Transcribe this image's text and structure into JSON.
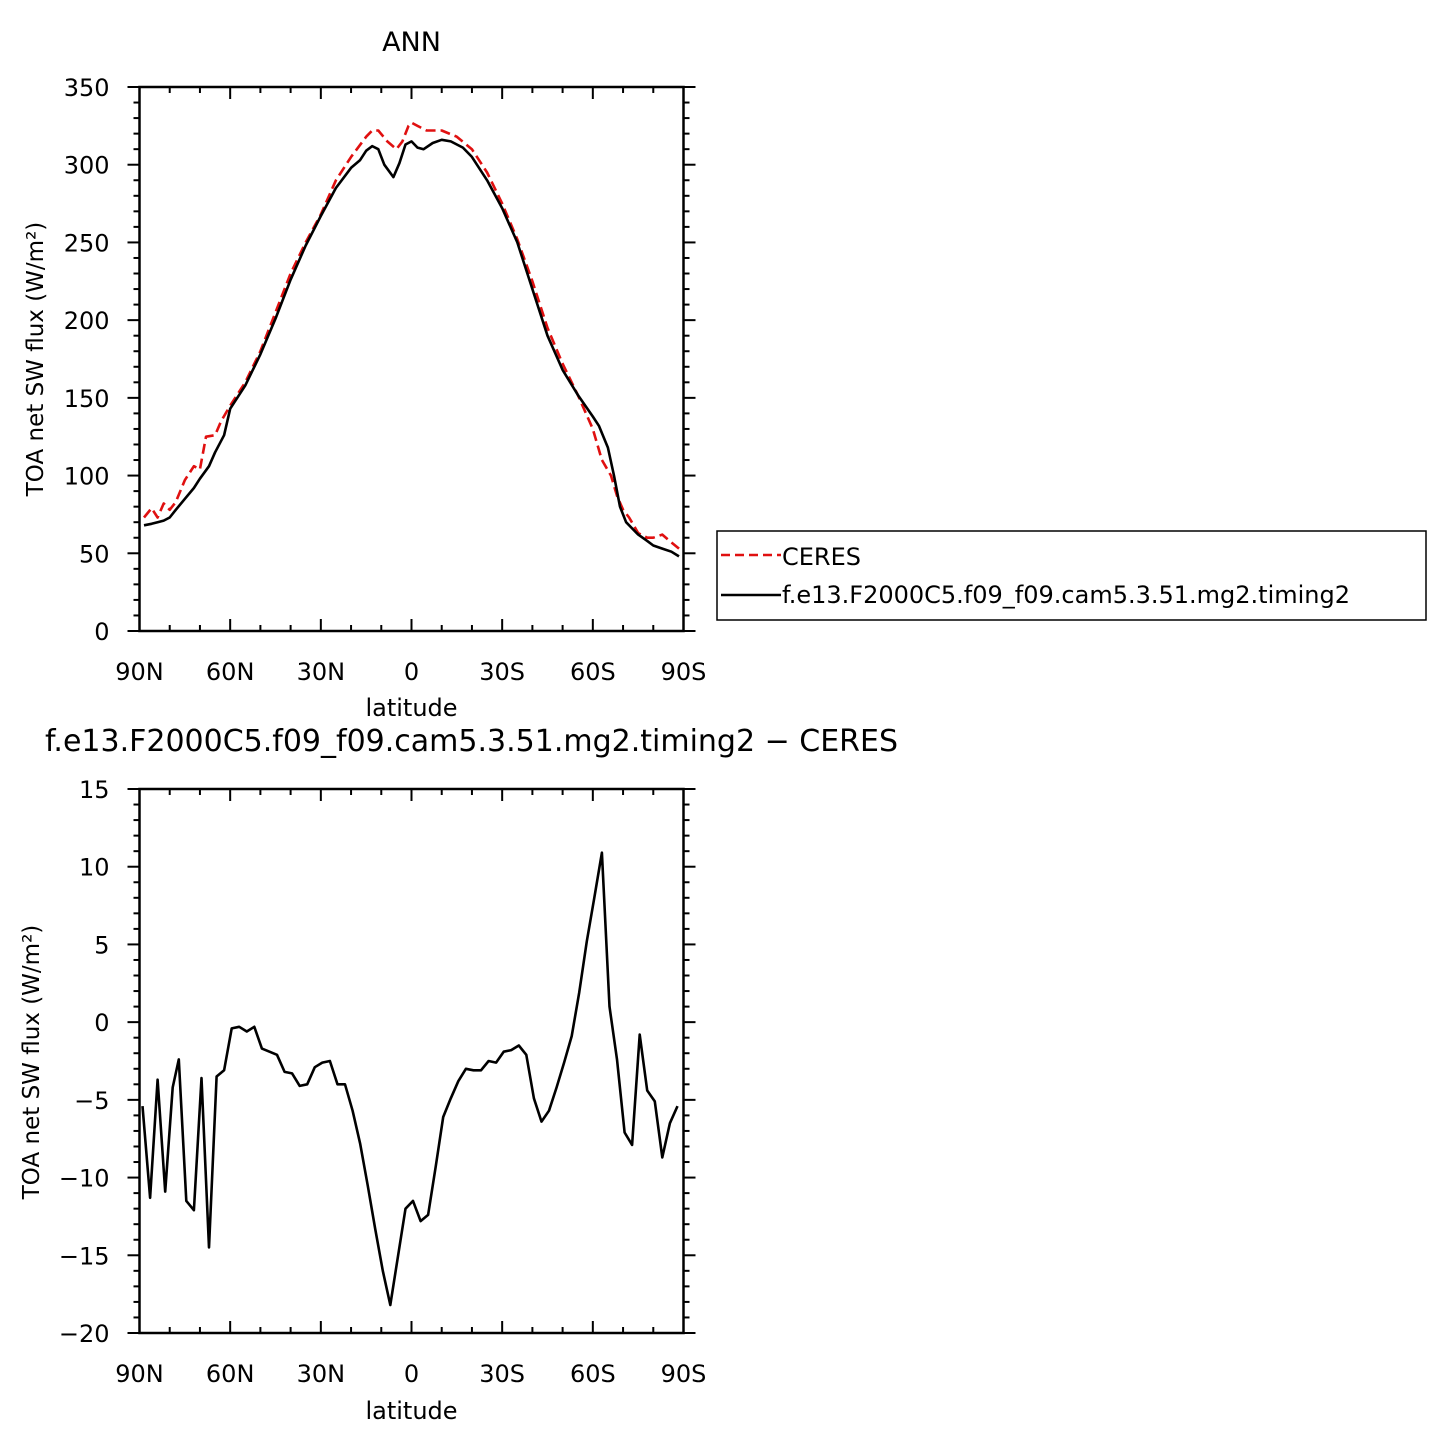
{
  "chart_data": [
    {
      "type": "line",
      "title": "ANN",
      "xlabel": "latitude",
      "ylabel": "TOA net SW flux (W/m²)",
      "xlim": [
        90,
        -90
      ],
      "ylim": [
        0,
        350
      ],
      "x_ticks": [
        {
          "value": 90,
          "label": "90N"
        },
        {
          "value": 60,
          "label": "60N"
        },
        {
          "value": 30,
          "label": "30N"
        },
        {
          "value": 0,
          "label": "0"
        },
        {
          "value": -30,
          "label": "30S"
        },
        {
          "value": -60,
          "label": "60S"
        },
        {
          "value": -90,
          "label": "90S"
        }
      ],
      "y_ticks": [
        {
          "value": 0,
          "label": "0"
        },
        {
          "value": 50,
          "label": "50"
        },
        {
          "value": 100,
          "label": "100"
        },
        {
          "value": 150,
          "label": "150"
        },
        {
          "value": 200,
          "label": "200"
        },
        {
          "value": 250,
          "label": "250"
        },
        {
          "value": 300,
          "label": "300"
        },
        {
          "value": 350,
          "label": "350"
        }
      ],
      "legend": "right",
      "series": [
        {
          "name": "CERES",
          "color": "#e01010",
          "dash": "dashed",
          "points": [
            [
              88.5,
              73
            ],
            [
              86,
              79
            ],
            [
              84,
              73
            ],
            [
              82,
              82
            ],
            [
              80,
              78
            ],
            [
              78,
              83
            ],
            [
              75,
              97
            ],
            [
              72,
              106
            ],
            [
              70,
              104
            ],
            [
              68,
              125
            ],
            [
              65,
              126
            ],
            [
              63,
              135
            ],
            [
              60,
              145
            ],
            [
              55,
              160
            ],
            [
              50,
              180
            ],
            [
              45,
              205
            ],
            [
              40,
              230
            ],
            [
              35,
              250
            ],
            [
              30,
              268
            ],
            [
              25,
              290
            ],
            [
              20,
              305
            ],
            [
              15,
              318
            ],
            [
              13,
              322
            ],
            [
              11,
              322
            ],
            [
              8,
              315
            ],
            [
              5,
              310
            ],
            [
              3,
              315
            ],
            [
              1,
              325
            ],
            [
              0,
              327
            ],
            [
              -2,
              325
            ],
            [
              -5,
              322
            ],
            [
              -10,
              322
            ],
            [
              -15,
              318
            ],
            [
              -20,
              310
            ],
            [
              -25,
              295
            ],
            [
              -30,
              275
            ],
            [
              -35,
              252
            ],
            [
              -40,
              225
            ],
            [
              -45,
              195
            ],
            [
              -50,
              172
            ],
            [
              -55,
              152
            ],
            [
              -60,
              130
            ],
            [
              -63,
              110
            ],
            [
              -66,
              100
            ],
            [
              -68,
              87
            ],
            [
              -70,
              78
            ],
            [
              -72,
              73
            ],
            [
              -75,
              63
            ],
            [
              -78,
              60
            ],
            [
              -80,
              60
            ],
            [
              -83,
              62
            ],
            [
              -86,
              57
            ],
            [
              -88.5,
              53
            ]
          ]
        },
        {
          "name": "f.e13.F2000C5.f09_f09.cam5.3.51.mg2.timing2",
          "color": "#000000",
          "dash": "solid",
          "points": [
            [
              88.5,
              68
            ],
            [
              86,
              69
            ],
            [
              84,
              70
            ],
            [
              82,
              71
            ],
            [
              80,
              73
            ],
            [
              78,
              78
            ],
            [
              75,
              85
            ],
            [
              72,
              92
            ],
            [
              70,
              98
            ],
            [
              67,
              106
            ],
            [
              65,
              115
            ],
            [
              62,
              126
            ],
            [
              60,
              143
            ],
            [
              55,
              158
            ],
            [
              50,
              178
            ],
            [
              45,
              201
            ],
            [
              40,
              226
            ],
            [
              35,
              248
            ],
            [
              30,
              267
            ],
            [
              25,
              285
            ],
            [
              20,
              298
            ],
            [
              17,
              303
            ],
            [
              15,
              309
            ],
            [
              13,
              312
            ],
            [
              11,
              310
            ],
            [
              9,
              300
            ],
            [
              6,
              292
            ],
            [
              4,
              301
            ],
            [
              2,
              313
            ],
            [
              0,
              315
            ],
            [
              -2,
              311
            ],
            [
              -4,
              310
            ],
            [
              -7,
              314
            ],
            [
              -10,
              316
            ],
            [
              -13,
              315
            ],
            [
              -17,
              311
            ],
            [
              -20,
              305
            ],
            [
              -25,
              290
            ],
            [
              -30,
              272
            ],
            [
              -35,
              250
            ],
            [
              -40,
              220
            ],
            [
              -45,
              190
            ],
            [
              -50,
              168
            ],
            [
              -55,
              152
            ],
            [
              -60,
              138
            ],
            [
              -62,
              132
            ],
            [
              -65,
              118
            ],
            [
              -67,
              100
            ],
            [
              -69,
              80
            ],
            [
              -71,
              70
            ],
            [
              -73,
              66
            ],
            [
              -75,
              62
            ],
            [
              -78,
              58
            ],
            [
              -80,
              55
            ],
            [
              -83,
              53
            ],
            [
              -86,
              51
            ],
            [
              -88.5,
              48
            ]
          ]
        }
      ]
    },
    {
      "type": "line",
      "title": "f.e13.F2000C5.f09_f09.cam5.3.51.mg2.timing2 − CERES",
      "xlabel": "latitude",
      "ylabel": "TOA net SW flux (W/m²)",
      "xlim": [
        90,
        -90
      ],
      "ylim": [
        -20,
        15
      ],
      "x_ticks": [
        {
          "value": 90,
          "label": "90N"
        },
        {
          "value": 60,
          "label": "60N"
        },
        {
          "value": 30,
          "label": "30N"
        },
        {
          "value": 0,
          "label": "0"
        },
        {
          "value": -30,
          "label": "30S"
        },
        {
          "value": -60,
          "label": "60S"
        },
        {
          "value": -90,
          "label": "90S"
        }
      ],
      "y_ticks": [
        {
          "value": -20,
          "label": "−20"
        },
        {
          "value": -15,
          "label": "−15"
        },
        {
          "value": -10,
          "label": "−10"
        },
        {
          "value": -5,
          "label": "−5"
        },
        {
          "value": 0,
          "label": "0"
        },
        {
          "value": 5,
          "label": "5"
        },
        {
          "value": 10,
          "label": "10"
        },
        {
          "value": 15,
          "label": "15"
        }
      ],
      "series": [
        {
          "color": "#000000",
          "dash": "solid",
          "points": [
            [
              89,
              -5.4
            ],
            [
              86.5,
              -11.3
            ],
            [
              84,
              -3.7
            ],
            [
              81.5,
              -10.9
            ],
            [
              79,
              -4.2
            ],
            [
              77,
              -2.4
            ],
            [
              74.5,
              -11.5
            ],
            [
              72,
              -12.1
            ],
            [
              69.5,
              -3.6
            ],
            [
              67,
              -14.5
            ],
            [
              64.5,
              -3.5
            ],
            [
              62,
              -3.1
            ],
            [
              59.5,
              -0.4
            ],
            [
              57,
              -0.3
            ],
            [
              54.5,
              -0.6
            ],
            [
              52,
              -0.3
            ],
            [
              49.5,
              -1.7
            ],
            [
              47,
              -1.9
            ],
            [
              44.5,
              -2.1
            ],
            [
              42,
              -3.2
            ],
            [
              39.5,
              -3.3
            ],
            [
              37,
              -4.1
            ],
            [
              34.5,
              -4.0
            ],
            [
              32,
              -2.9
            ],
            [
              29.5,
              -2.6
            ],
            [
              27,
              -2.5
            ],
            [
              24.5,
              -4.0
            ],
            [
              22,
              -4.0
            ],
            [
              19.5,
              -5.7
            ],
            [
              17,
              -7.8
            ],
            [
              14.5,
              -10.5
            ],
            [
              12,
              -13.3
            ],
            [
              9.5,
              -16.0
            ],
            [
              7,
              -18.2
            ],
            [
              4.5,
              -15.1
            ],
            [
              2,
              -12.0
            ],
            [
              -0.5,
              -11.5
            ],
            [
              -3,
              -12.8
            ],
            [
              -5.5,
              -12.4
            ],
            [
              -8,
              -9.3
            ],
            [
              -10.5,
              -6.1
            ],
            [
              -13,
              -4.9
            ],
            [
              -15.5,
              -3.8
            ],
            [
              -18,
              -3.0
            ],
            [
              -20.5,
              -3.1
            ],
            [
              -23,
              -3.1
            ],
            [
              -25.5,
              -2.5
            ],
            [
              -28,
              -2.6
            ],
            [
              -30.5,
              -1.9
            ],
            [
              -33,
              -1.8
            ],
            [
              -35.5,
              -1.5
            ],
            [
              -38,
              -2.1
            ],
            [
              -40.5,
              -4.9
            ],
            [
              -43,
              -6.4
            ],
            [
              -45.5,
              -5.7
            ],
            [
              -48,
              -4.2
            ],
            [
              -50.5,
              -2.6
            ],
            [
              -53,
              -0.9
            ],
            [
              -55.5,
              1.9
            ],
            [
              -58,
              5.2
            ],
            [
              -60.5,
              8.0
            ],
            [
              -63,
              10.9
            ],
            [
              -65.5,
              1.0
            ],
            [
              -68,
              -2.4
            ],
            [
              -70.5,
              -7.1
            ],
            [
              -73,
              -7.9
            ],
            [
              -75.5,
              -0.8
            ],
            [
              -78,
              -4.4
            ],
            [
              -80.5,
              -5.1
            ],
            [
              -83,
              -8.7
            ],
            [
              -85.5,
              -6.5
            ],
            [
              -88,
              -5.4
            ]
          ]
        }
      ]
    }
  ]
}
